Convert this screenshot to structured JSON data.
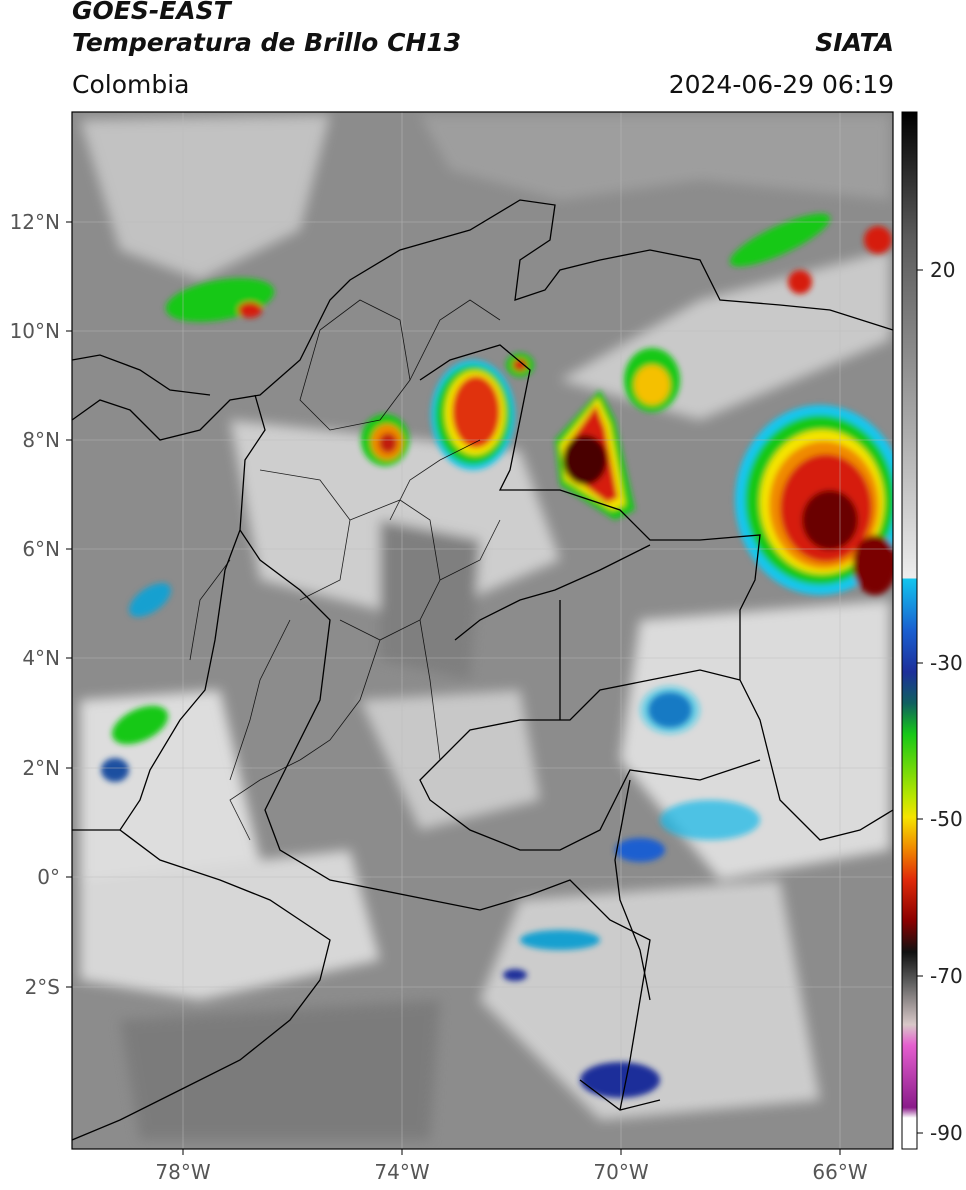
{
  "header": {
    "title_line1": "GOES-EAST",
    "title_line2": "Temperatura de Brillo CH13",
    "organization": "SIATA",
    "region": "Colombia",
    "timestamp": "2024-06-29 06:19"
  },
  "axes": {
    "lat_labels": [
      "12°N",
      "10°N",
      "8°N",
      "6°N",
      "4°N",
      "2°N",
      "0°",
      "2°S"
    ],
    "lon_labels": [
      "78°W",
      "74°W",
      "70°W",
      "66°W"
    ]
  },
  "colorbar": {
    "tick_labels": [
      "20",
      "-30",
      "-50",
      "-70",
      "-90"
    ],
    "colors": {
      "light_gray": "#d9d9d9",
      "cyan": "#13b8e8",
      "blue": "#1d2f9a",
      "green": "#17c817",
      "yellow": "#f5e400",
      "orange": "#f08a00",
      "red": "#d61a0a",
      "dark_red": "#5a0000",
      "black": "#111111",
      "magenta": "#e55fcf",
      "purple": "#8a1b8a"
    }
  }
}
